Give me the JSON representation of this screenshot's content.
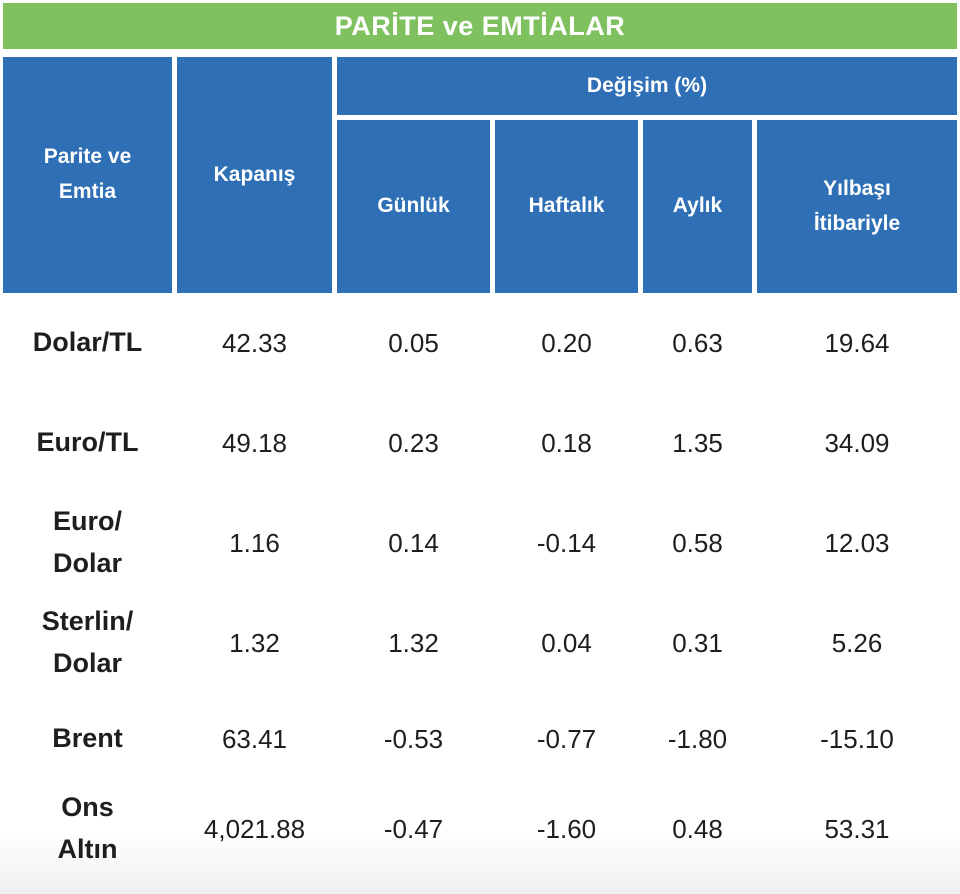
{
  "title": "PARİTE ve EMTİALAR",
  "colors": {
    "green": "#7fc15f",
    "blue": "#2e6fb6",
    "text": "#1e1e1e"
  },
  "columns": {
    "entity": "Parite ve\nEmtia",
    "close": "Kapanış",
    "change_group": "Değişim (%)",
    "daily": "Günlük",
    "weekly": "Haftalık",
    "monthly": "Aylık",
    "ytd": "Yılbaşı\nİtibariyle"
  },
  "rows": [
    {
      "label": "Dolar/TL",
      "kapanis": "42.33",
      "gunluk": "0.05",
      "haftalik": "0.20",
      "aylik": "0.63",
      "yilbasi": "19.64"
    },
    {
      "label": "Euro/TL",
      "kapanis": "49.18",
      "gunluk": "0.23",
      "haftalik": "0.18",
      "aylik": "1.35",
      "yilbasi": "34.09"
    },
    {
      "label": "Euro/\nDolar",
      "kapanis": "1.16",
      "gunluk": "0.14",
      "haftalik": "-0.14",
      "aylik": "0.58",
      "yilbasi": "12.03"
    },
    {
      "label": "Sterlin/\nDolar",
      "kapanis": "1.32",
      "gunluk": "1.32",
      "haftalik": "0.04",
      "aylik": "0.31",
      "yilbasi": "5.26"
    },
    {
      "label": "Brent",
      "kapanis": "63.41",
      "gunluk": "-0.53",
      "haftalik": "-0.77",
      "aylik": "-1.80",
      "yilbasi": "-15.10"
    },
    {
      "label": "Ons\nAltın",
      "kapanis": "4,021.88",
      "gunluk": "-0.47",
      "haftalik": "-1.60",
      "aylik": "0.48",
      "yilbasi": "53.31"
    }
  ],
  "chart_data": {
    "type": "table",
    "title": "PARİTE ve EMTİALAR",
    "columns": [
      "Parite ve Emtia",
      "Kapanış",
      "Değişim (%) Günlük",
      "Değişim (%) Haftalık",
      "Değişim (%) Aylık",
      "Değişim (%) Yılbaşı İtibariyle"
    ],
    "rows": [
      [
        "Dolar/TL",
        42.33,
        0.05,
        0.2,
        0.63,
        19.64
      ],
      [
        "Euro/TL",
        49.18,
        0.23,
        0.18,
        1.35,
        34.09
      ],
      [
        "Euro/Dolar",
        1.16,
        0.14,
        -0.14,
        0.58,
        12.03
      ],
      [
        "Sterlin/Dolar",
        1.32,
        1.32,
        0.04,
        0.31,
        5.26
      ],
      [
        "Brent",
        63.41,
        -0.53,
        -0.77,
        -1.8,
        -15.1
      ],
      [
        "Ons Altın",
        4021.88,
        -0.47,
        -1.6,
        0.48,
        53.31
      ]
    ]
  }
}
